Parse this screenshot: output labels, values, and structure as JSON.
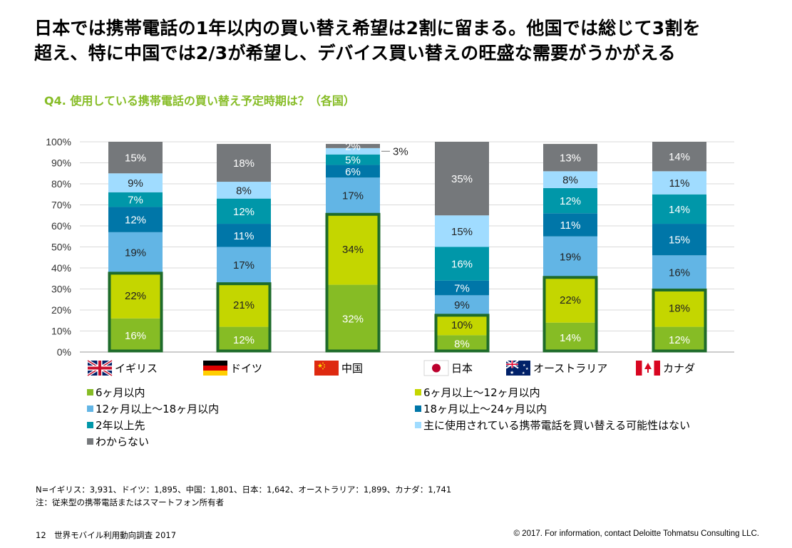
{
  "headline": {
    "line1": "日本では携帯電話の1年以内の買い替え希望は2割に留まる。他国では総じて3割を",
    "line2": "超え、特に中国では2/3が希望し、デバイス買い替えの旺盛な需要がうかがえる"
  },
  "question": "Q4. 使用している携帯電話の買い替え予定時期は？（各国）",
  "chart_data": {
    "type": "bar",
    "stacked": true,
    "categories": [
      "イギリス",
      "ドイツ",
      "中国",
      "日本",
      "オーストラリア",
      "カナダ"
    ],
    "category_flags": [
      "uk-flag-icon",
      "germany-flag-icon",
      "china-flag-icon",
      "japan-flag-icon",
      "australia-flag-icon",
      "canada-flag-icon"
    ],
    "y_ticks": [
      "0%",
      "10%",
      "20%",
      "30%",
      "40%",
      "50%",
      "60%",
      "70%",
      "80%",
      "90%",
      "100%"
    ],
    "ylim": [
      0,
      100
    ],
    "grid": true,
    "legend_position": "bottom",
    "highlight_note": "first two series outlined per bar in dark green",
    "highlight_color": "#1e6b2a",
    "series": [
      {
        "name": "6ヶ月以内",
        "color": "#86bc25",
        "values": [
          16,
          12,
          32,
          8,
          14,
          12
        ],
        "labels": [
          "16%",
          "12%",
          "32%",
          "8%",
          "14%",
          "12%"
        ]
      },
      {
        "name": "6ヶ月以上～12ヶ月以内",
        "color": "#c4d600",
        "values": [
          22,
          21,
          34,
          10,
          22,
          18
        ],
        "labels": [
          "22%",
          "21%",
          "34%",
          "10%",
          "22%",
          "18%"
        ]
      },
      {
        "name": "12ヶ月以上～18ヶ月以内",
        "color": "#62b5e5",
        "values": [
          19,
          17,
          17,
          9,
          19,
          16
        ],
        "labels": [
          "19%",
          "17%",
          "17%",
          "9%",
          "19%",
          "16%"
        ]
      },
      {
        "name": "18ヶ月以上～24ヶ月以内",
        "color": "#0076a8",
        "values": [
          12,
          11,
          6,
          7,
          11,
          15
        ],
        "labels": [
          "12%",
          "11%",
          "6%",
          "7%",
          "11%",
          "15%"
        ]
      },
      {
        "name": "2年以上先",
        "color": "#0097a9",
        "values": [
          7,
          12,
          5,
          16,
          12,
          14
        ],
        "labels": [
          "7%",
          "12%",
          "5%",
          "16%",
          "12%",
          "14%"
        ]
      },
      {
        "name": "主に使用されている携帯電話を買い替える可能性はない",
        "color": "#a0dcff",
        "values": [
          9,
          8,
          3,
          15,
          8,
          11
        ],
        "labels": [
          "9%",
          "8%",
          "",
          "15%",
          "8%",
          "11%"
        ]
      },
      {
        "name": "わからない",
        "color": "#75787b",
        "values": [
          15,
          18,
          2,
          35,
          13,
          14
        ],
        "labels": [
          "15%",
          "18%",
          "2%",
          "35%",
          "13%",
          "14%"
        ]
      }
    ],
    "callout": {
      "category_index": 2,
      "series_index": 5,
      "label": "3%"
    }
  },
  "notes": {
    "sample": "N=イギリス：3,931、ドイツ：1,895、中国：1,801、日本：1,642、オーストラリア：1,899、カナダ：1,741",
    "footnote": "注：従来型の携帯電話またはスマートフォン所有者"
  },
  "footer": {
    "page": "12　世界モバイル利用動向調査 2017",
    "copyright": "© 2017. For information, contact Deloitte Tohmatsu Consulting LLC."
  }
}
